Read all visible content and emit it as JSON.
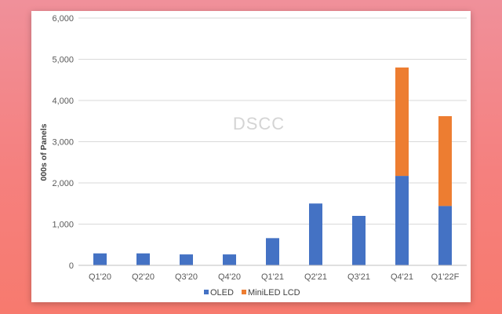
{
  "chart_data": {
    "type": "bar",
    "stacked": true,
    "categories": [
      "Q1'20",
      "Q2'20",
      "Q3'20",
      "Q4'20",
      "Q1'21",
      "Q2'21",
      "Q3'21",
      "Q4'21",
      "Q1'22F"
    ],
    "series": [
      {
        "name": "OLED",
        "color": "#4472C4",
        "values": [
          290,
          290,
          265,
          265,
          660,
          1500,
          1200,
          2170,
          1440
        ]
      },
      {
        "name": "MiniLED LCD",
        "color": "#ED7D31",
        "values": [
          0,
          0,
          0,
          0,
          0,
          0,
          0,
          2630,
          2180
        ]
      }
    ],
    "ylabel": "000s of Panels",
    "ylim": [
      0,
      6000
    ],
    "yticks": [
      0,
      1000,
      2000,
      3000,
      4000,
      5000,
      6000
    ],
    "ytick_labels": [
      "0",
      "1,000",
      "2,000",
      "3,000",
      "4,000",
      "5,000",
      "6,000"
    ],
    "grid": true,
    "legend_position": "bottom",
    "watermark": "DSCC"
  }
}
